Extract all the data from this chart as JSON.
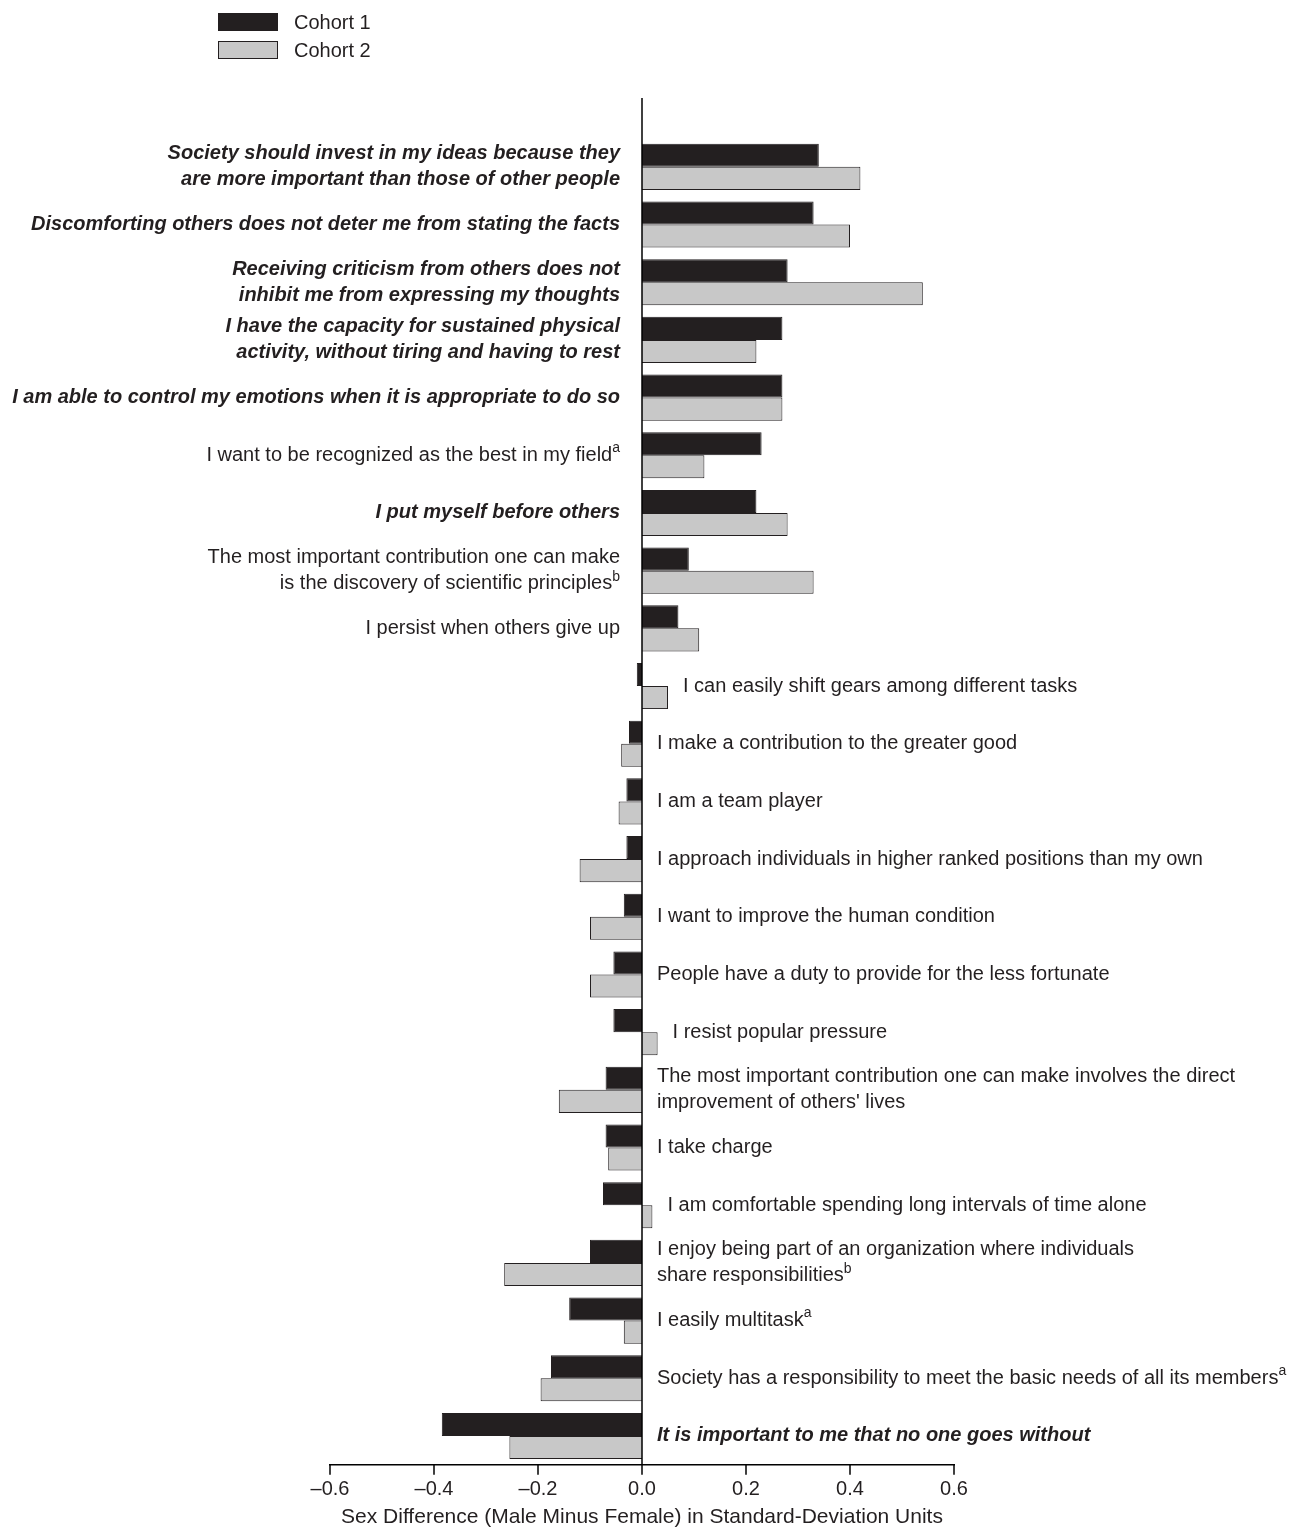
{
  "chart_data": {
    "type": "bar",
    "orientation": "horizontal",
    "categories": [
      "Society should invest in my ideas because they\nare more important than those of other people",
      "Discomforting others does not deter me from stating the facts",
      "Receiving criticism from others does not\ninhibit me from expressing my thoughts",
      "I have the capacity for sustained physical\nactivity, without tiring and having to rest",
      "I am able to control my emotions when it is appropriate to do so",
      "I want to be recognized as the best in my field$^{a}$",
      "I put myself before others",
      "The most important contribution one can make\nis the discovery of scientific principles$^{b}$",
      "I persist when others give up",
      "I can easily shift gears among different tasks",
      "I make a contribution to the greater good",
      "I am a team player",
      "I approach individuals in higher ranked positions than my own",
      "I want to improve the human condition",
      "People have a duty to provide for the less fortunate",
      "I resist popular pressure",
      "The most important contribution one can make involves the direct\nimprovement of others' lives",
      "I take charge",
      "I am comfortable spending long intervals of time alone",
      "I enjoy being part of an organization where individuals\nshare responsibilities$^{b}$",
      "I easily multitask$^{a}$",
      "Society has a responsibility to meet the basic needs of all its members$^{a}$",
      "It is important to me that no one goes without"
    ],
    "series": [
      {
        "name": "Cohort 1",
        "color": "#231f20",
        "values": [
          0.34,
          0.33,
          0.28,
          0.27,
          0.27,
          0.23,
          0.22,
          0.09,
          0.07,
          -0.01,
          -0.025,
          -0.03,
          -0.03,
          -0.035,
          -0.055,
          -0.055,
          -0.07,
          -0.07,
          -0.075,
          -0.1,
          -0.14,
          -0.175,
          -0.385
        ]
      },
      {
        "name": "Cohort 2",
        "color": "#c8c8c8",
        "values": [
          0.42,
          0.4,
          0.54,
          0.22,
          0.27,
          0.12,
          0.28,
          0.33,
          0.11,
          0.05,
          -0.04,
          -0.045,
          -0.12,
          -0.1,
          -0.1,
          0.03,
          -0.16,
          -0.065,
          0.02,
          -0.265,
          -0.035,
          -0.195,
          -0.255
        ]
      }
    ],
    "xlabel": "Sex Difference (Male Minus Female) in Standard-Deviation Units",
    "xlim": [
      -0.6,
      0.6
    ],
    "xticks": [
      {
        "value": -0.6,
        "label": "–0.6"
      },
      {
        "value": -0.4,
        "label": "–0.4"
      },
      {
        "value": -0.2,
        "label": "–0.2"
      },
      {
        "value": 0,
        "label": "0.0"
      },
      0.2,
      0.4,
      0.6
    ],
    "legend": "top left",
    "grid": false
  }
}
